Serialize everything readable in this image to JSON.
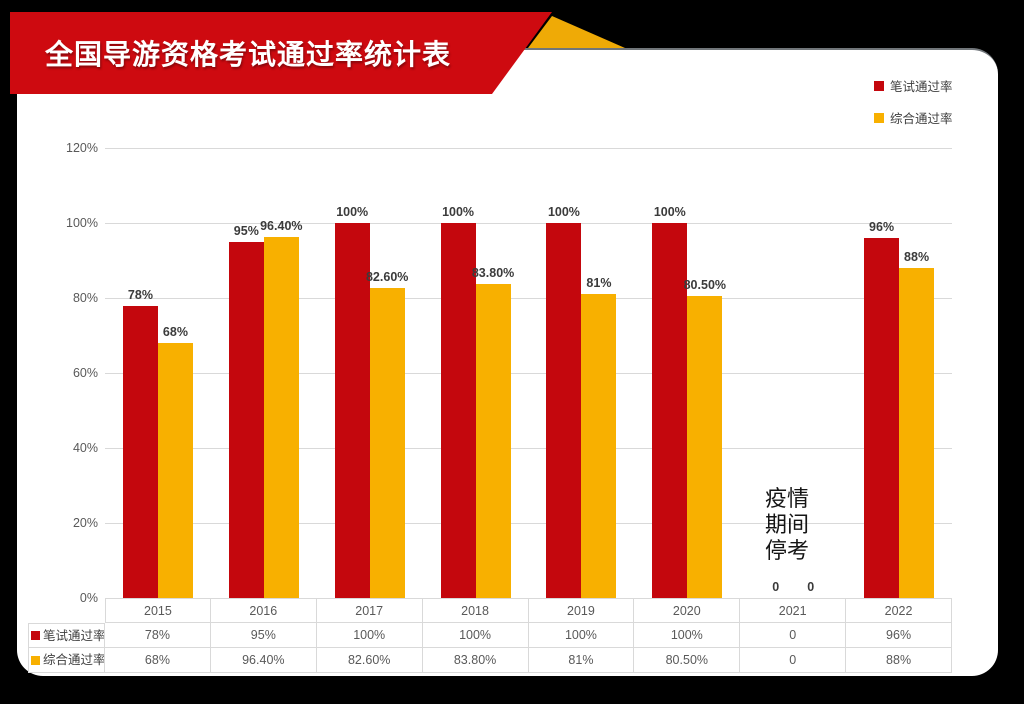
{
  "banner": {
    "title": "全国导游资格考试通过率统计表"
  },
  "colors": {
    "banner_red": "#CE0A10",
    "gold_triangle": "#EFAA06",
    "bar_red": "#C4070D",
    "bar_gold": "#F8B000",
    "gridline": "#d9d9d9",
    "axis_text": "#595959",
    "bar_label_text": "#3b3b3b"
  },
  "legend": [
    {
      "label": "笔试通过率",
      "color": "#C4070D"
    },
    {
      "label": "综合通过率",
      "color": "#F8B000"
    }
  ],
  "annotation": {
    "lines": [
      "疫情",
      "期间",
      "停考"
    ]
  },
  "chart_data": {
    "type": "bar",
    "title": "全国导游资格考试通过率统计表",
    "categories": [
      "2015",
      "2016",
      "2017",
      "2018",
      "2019",
      "2020",
      "2021",
      "2022"
    ],
    "series": [
      {
        "name": "笔试通过率",
        "color": "#C4070D",
        "values": [
          78,
          95,
          100,
          100,
          100,
          100,
          0,
          96
        ],
        "labels": [
          "78%",
          "95%",
          "100%",
          "100%",
          "100%",
          "100%",
          "0",
          "96%"
        ]
      },
      {
        "name": "综合通过率",
        "color": "#F8B000",
        "values": [
          68,
          96.4,
          82.6,
          83.8,
          81,
          80.5,
          0,
          88
        ],
        "labels": [
          "68%",
          "96.40%",
          "82.60%",
          "83.80%",
          "81%",
          "80.50%",
          "0",
          "88%"
        ]
      }
    ],
    "ylabel": "",
    "xlabel": "",
    "ylim": [
      0,
      120
    ],
    "y_ticks": [
      "0%",
      "20%",
      "40%",
      "60%",
      "80%",
      "100%",
      "120%"
    ],
    "grid": true,
    "legend_position": "top-right",
    "annotation_text": "疫情期间停考 (2021)"
  },
  "table": {
    "columns": [
      "2015",
      "2016",
      "2017",
      "2018",
      "2019",
      "2020",
      "2021",
      "2022"
    ],
    "row_headers": [
      "笔试通过率",
      "综合通过率"
    ],
    "rows": [
      [
        "78%",
        "95%",
        "100%",
        "100%",
        "100%",
        "100%",
        "0",
        "96%"
      ],
      [
        "68%",
        "96.40%",
        "82.60%",
        "83.80%",
        "81%",
        "80.50%",
        "0",
        "88%"
      ]
    ]
  }
}
